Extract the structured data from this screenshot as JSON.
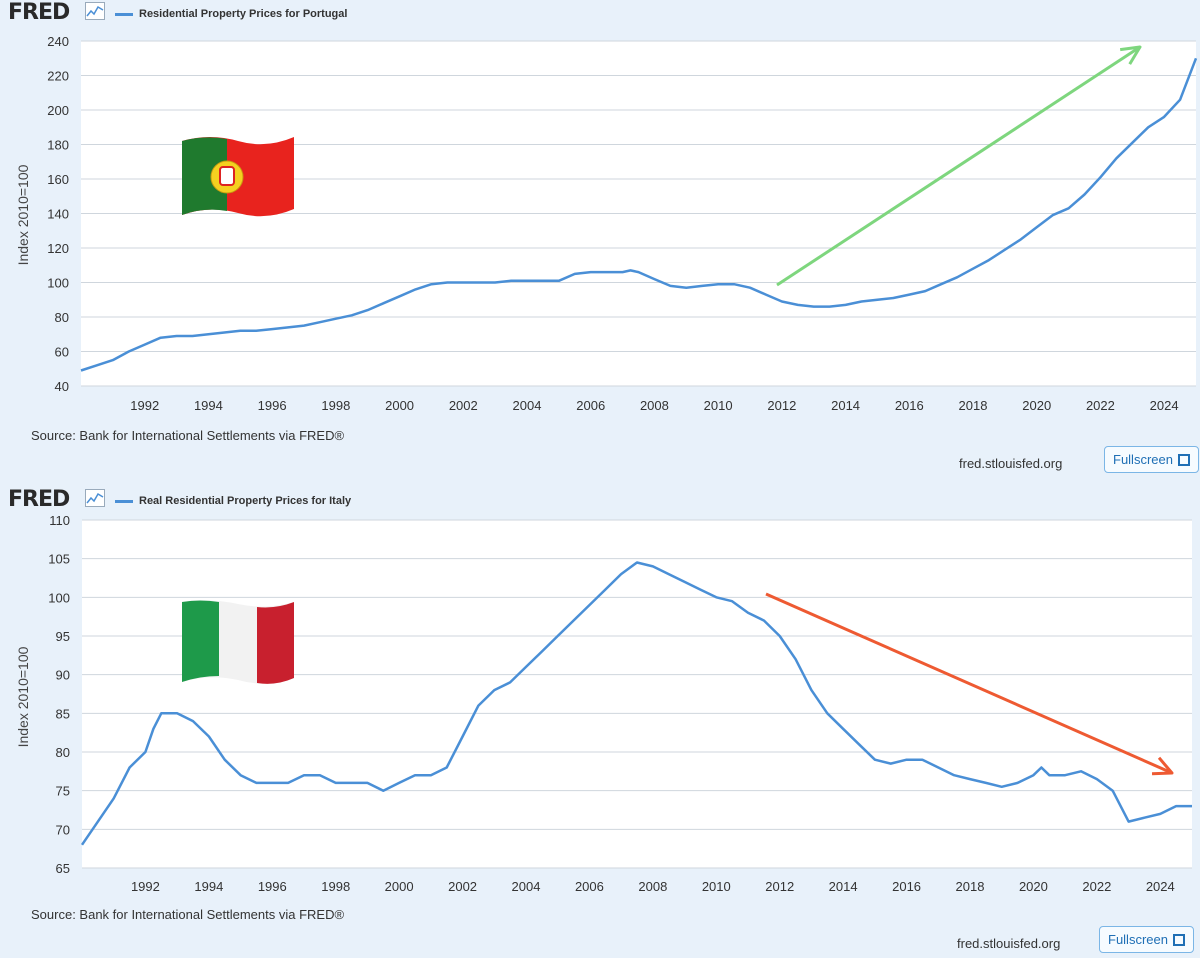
{
  "brand": {
    "logo_text": "FRED"
  },
  "charts": [
    {
      "id": "portugal",
      "source": "Source: Bank for International Settlements via FRED®",
      "site": "fred.stlouisfed.org",
      "fullscreen_label": "Fullscreen",
      "flag": "portugal-flag",
      "trend_arrow_color": "#7ed67e",
      "line_color": "#4a8fd6"
    },
    {
      "id": "italy",
      "source": "Source: Bank for International Settlements via FRED®",
      "site": "fred.stlouisfed.org",
      "fullscreen_label": "Fullscreen",
      "flag": "italy-flag",
      "trend_arrow_color": "#ee5a32",
      "line_color": "#4a8fd6"
    }
  ],
  "chart_data": [
    {
      "type": "line",
      "title": "",
      "xlabel": "",
      "ylabel": "Index 2010=100",
      "ylim": [
        40,
        240
      ],
      "xlim": [
        1990,
        2025
      ],
      "yticks": [
        40,
        60,
        80,
        100,
        120,
        140,
        160,
        180,
        200,
        220,
        240
      ],
      "xticks": [
        "1992",
        "1994",
        "1996",
        "1998",
        "2000",
        "2002",
        "2004",
        "2006",
        "2008",
        "2010",
        "2012",
        "2014",
        "2016",
        "2018",
        "2020",
        "2022",
        "2024"
      ],
      "grid": true,
      "legend": "top-left",
      "series": [
        {
          "name": "Residential Property Prices for Portugal",
          "x": [
            1990,
            1990.5,
            1991,
            1991.5,
            1992,
            1992.5,
            1993,
            1993.5,
            1994,
            1994.5,
            1995,
            1995.5,
            1996,
            1996.5,
            1997,
            1997.5,
            1998,
            1998.5,
            1999,
            1999.5,
            2000,
            2000.5,
            2001,
            2001.5,
            2002,
            2002.5,
            2003,
            2003.5,
            2004,
            2004.5,
            2005,
            2005.5,
            2006,
            2006.5,
            2007,
            2007.25,
            2007.5,
            2008,
            2008.5,
            2009,
            2009.5,
            2010,
            2010.5,
            2011,
            2011.5,
            2012,
            2012.5,
            2013,
            2013.5,
            2014,
            2014.5,
            2015,
            2015.5,
            2016,
            2016.5,
            2017,
            2017.5,
            2018,
            2018.5,
            2019,
            2019.5,
            2020,
            2020.5,
            2021,
            2021.5,
            2022,
            2022.5,
            2023,
            2023.5,
            2024,
            2024.5,
            2025
          ],
          "values": [
            49,
            52,
            55,
            60,
            64,
            68,
            69,
            69,
            70,
            71,
            72,
            72,
            73,
            74,
            75,
            77,
            79,
            81,
            84,
            88,
            92,
            96,
            99,
            100,
            100,
            100,
            100,
            101,
            101,
            101,
            101,
            105,
            106,
            106,
            106,
            107,
            106,
            102,
            98,
            97,
            98,
            99,
            99,
            97,
            93,
            89,
            87,
            86,
            86,
            87,
            89,
            90,
            91,
            93,
            95,
            99,
            103,
            108,
            113,
            119,
            125,
            132,
            139,
            143,
            151,
            161,
            172,
            181,
            190,
            196,
            206,
            230
          ]
        }
      ]
    },
    {
      "type": "line",
      "title": "",
      "xlabel": "",
      "ylabel": "Index 2010=100",
      "ylim": [
        65,
        110
      ],
      "xlim": [
        1990,
        2025
      ],
      "yticks": [
        65,
        70,
        75,
        80,
        85,
        90,
        95,
        100,
        105,
        110
      ],
      "xticks": [
        "1992",
        "1994",
        "1996",
        "1998",
        "2000",
        "2002",
        "2004",
        "2006",
        "2008",
        "2010",
        "2012",
        "2014",
        "2016",
        "2018",
        "2020",
        "2022",
        "2024"
      ],
      "grid": true,
      "legend": "top-left",
      "series": [
        {
          "name": "Real Residential Property Prices for Italy",
          "x": [
            1990,
            1990.5,
            1991,
            1991.5,
            1992,
            1992.25,
            1992.5,
            1993,
            1993.5,
            1994,
            1994.5,
            1995,
            1995.5,
            1996,
            1996.5,
            1997,
            1997.5,
            1998,
            1998.5,
            1999,
            1999.5,
            2000,
            2000.5,
            2001,
            2001.5,
            2002,
            2002.5,
            2003,
            2003.5,
            2004,
            2004.5,
            2005,
            2005.5,
            2006,
            2006.5,
            2007,
            2007.5,
            2008,
            2008.5,
            2009,
            2009.5,
            2010,
            2010.5,
            2011,
            2011.5,
            2012,
            2012.5,
            2013,
            2013.5,
            2014,
            2014.5,
            2015,
            2015.5,
            2016,
            2016.5,
            2017,
            2017.5,
            2018,
            2018.5,
            2019,
            2019.5,
            2020,
            2020.25,
            2020.5,
            2021,
            2021.5,
            2022,
            2022.5,
            2023,
            2023.5,
            2024,
            2024.5,
            2025
          ],
          "values": [
            68,
            71,
            74,
            78,
            80,
            83,
            85,
            85,
            84,
            82,
            79,
            77,
            76,
            76,
            76,
            77,
            77,
            76,
            76,
            76,
            75,
            76,
            77,
            77,
            78,
            82,
            86,
            88,
            89,
            91,
            93,
            95,
            97,
            99,
            101,
            103,
            104.5,
            104,
            103,
            102,
            101,
            100,
            99.5,
            98,
            97,
            95,
            92,
            88,
            85,
            83,
            81,
            79,
            78.5,
            79,
            79,
            78,
            77,
            76.5,
            76,
            75.5,
            76,
            77,
            78,
            77,
            77,
            77.5,
            76.5,
            75,
            71,
            71.5,
            72,
            73,
            73
          ]
        }
      ]
    }
  ]
}
